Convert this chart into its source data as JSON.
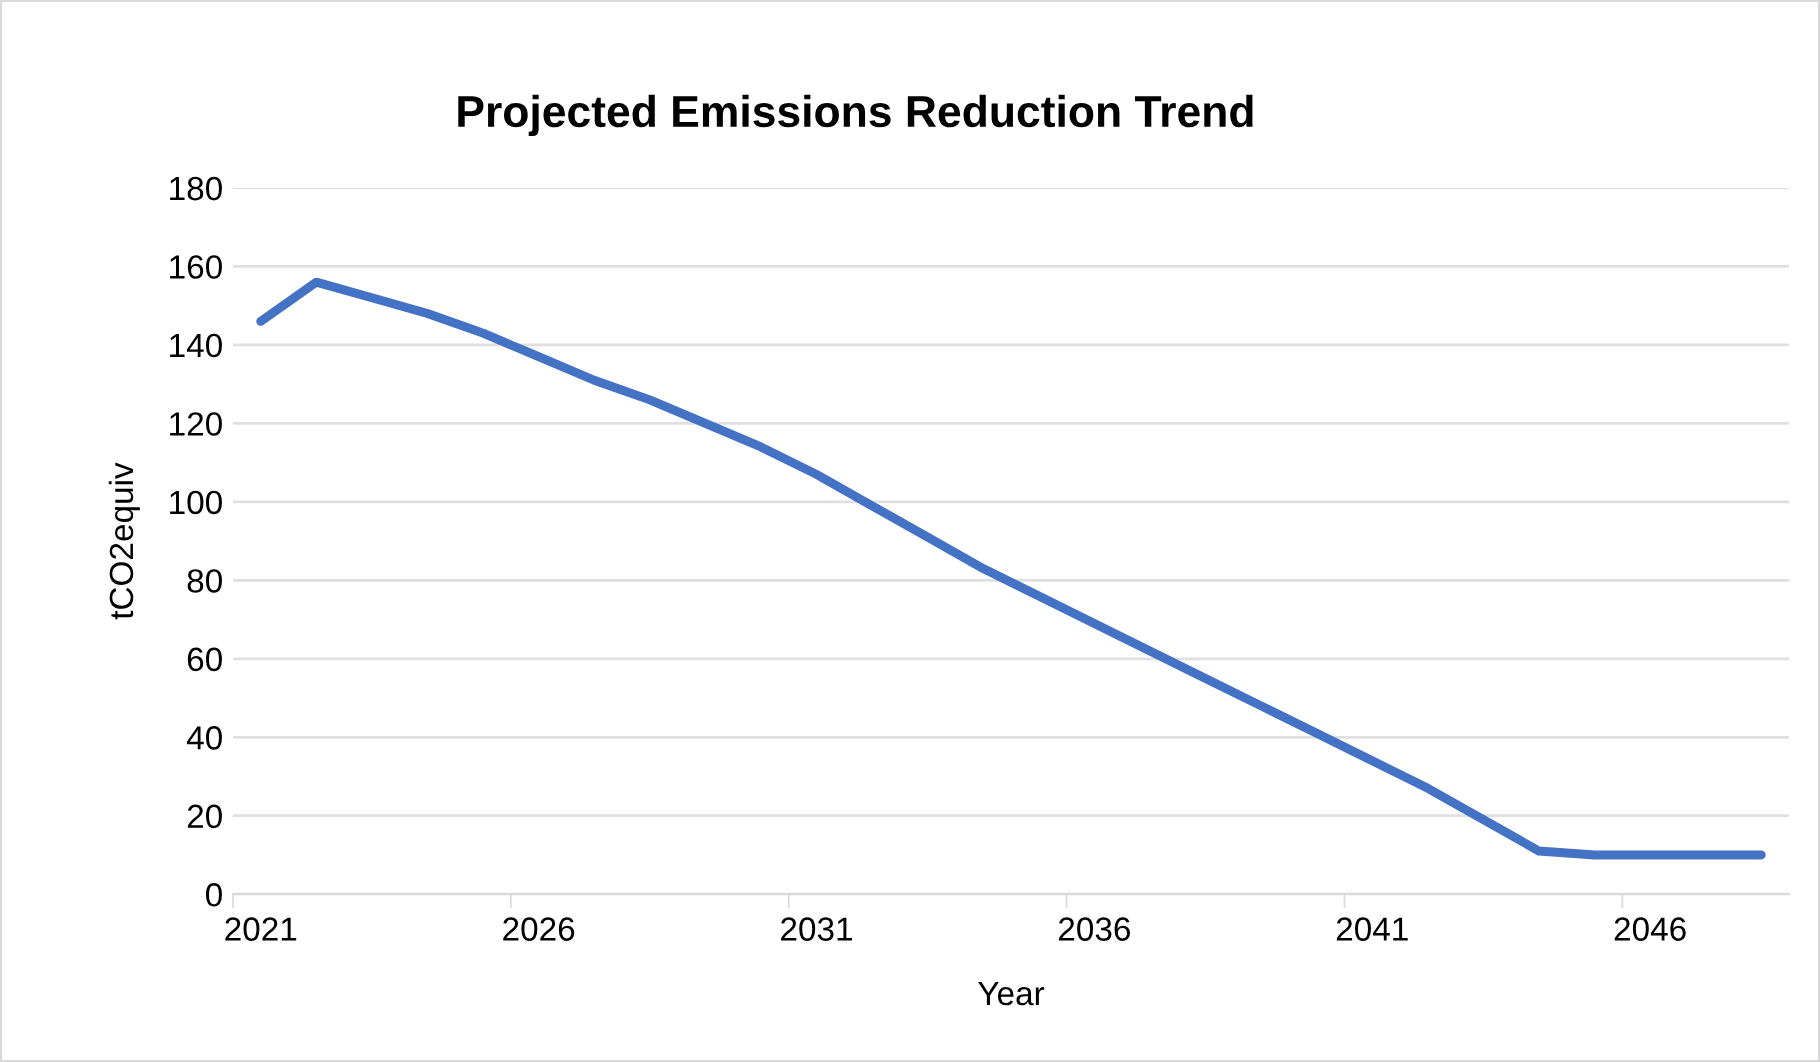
{
  "chart_data": {
    "type": "line",
    "title": "Projected Emissions Reduction Trend",
    "xlabel": "Year",
    "ylabel": "tCO2equiv",
    "categories": [
      "2021",
      null,
      null,
      null,
      null,
      "2026",
      null,
      null,
      null,
      null,
      "2031",
      null,
      null,
      null,
      null,
      "2036",
      null,
      null,
      null,
      null,
      "2041",
      null,
      null,
      null,
      null,
      "2046",
      null,
      null
    ],
    "series": [
      {
        "color": "#4472c4",
        "values": [
          146,
          156,
          152,
          148,
          143,
          137,
          131,
          126,
          120,
          114,
          107,
          99,
          91,
          83,
          76,
          69,
          62,
          55,
          48,
          41,
          34,
          27,
          19,
          11,
          10,
          10,
          10,
          10
        ]
      }
    ],
    "ylim": [
      0,
      180
    ],
    "yticks": [
      0,
      20,
      40,
      60,
      80,
      100,
      120,
      140,
      160,
      180
    ],
    "grid": "y",
    "marker": "none",
    "line_style": "solid"
  }
}
